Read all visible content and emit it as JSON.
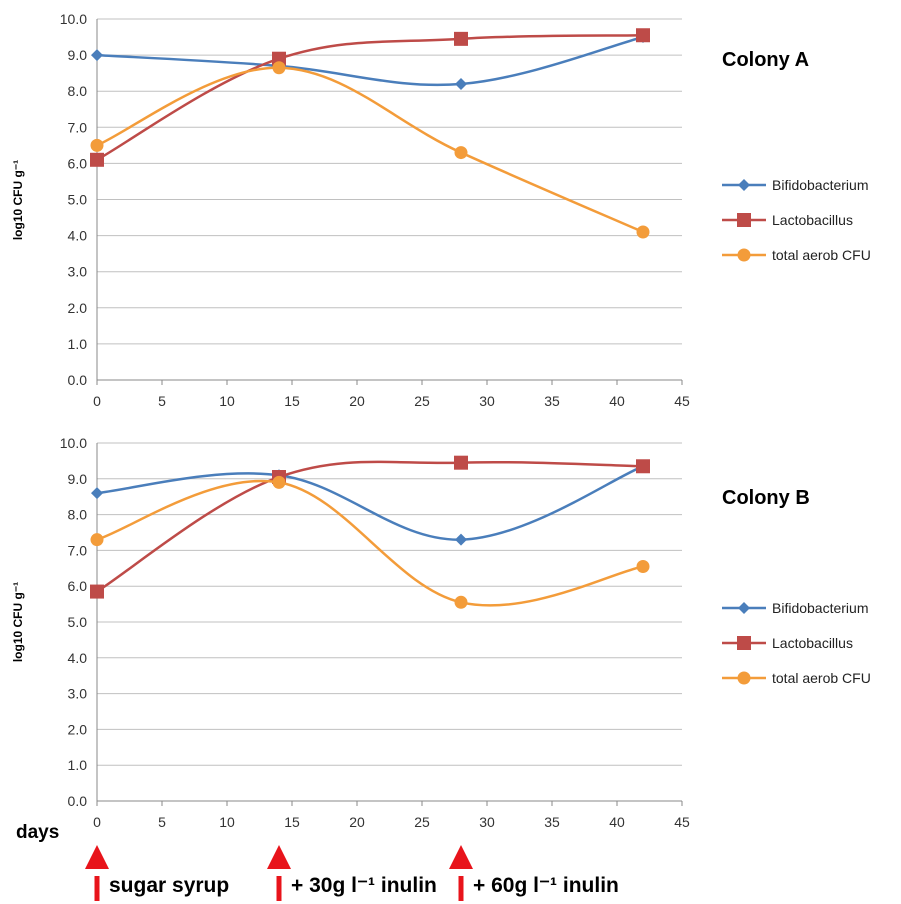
{
  "days_label": "days",
  "annotations": [
    {
      "label": "sugar syrup",
      "x": 0
    },
    {
      "label": "+ 30g l⁻¹ inulin",
      "x": 14
    },
    {
      "label": "+ 60g l⁻¹ inulin",
      "x": 28
    }
  ],
  "colors": {
    "bifidobacterium": "#4A7EBB",
    "lactobacillus": "#BE4B48",
    "total_aerob": "#F39C3A",
    "arrow": "#E8141B",
    "grid": "#C0C0C0"
  },
  "chart_data": [
    {
      "type": "line",
      "title": "Colony A",
      "ylabel": "log10 CFU g⁻¹",
      "xlabel": "",
      "xlim": [
        0,
        45
      ],
      "ylim": [
        0,
        10
      ],
      "x_ticks": [
        "0",
        "5",
        "10",
        "15",
        "20",
        "25",
        "30",
        "35",
        "40",
        "45"
      ],
      "y_ticks": [
        "0.0",
        "1.0",
        "2.0",
        "3.0",
        "4.0",
        "5.0",
        "6.0",
        "7.0",
        "8.0",
        "9.0",
        "10.0"
      ],
      "grid": true,
      "legend_position": "right",
      "series": [
        {
          "name": "Bifidobacterium",
          "marker": "diamond",
          "x": [
            0,
            14,
            28,
            42
          ],
          "values": [
            9.0,
            8.7,
            8.2,
            9.5
          ]
        },
        {
          "name": "Lactobacillus",
          "marker": "square",
          "x": [
            0,
            14,
            28,
            42
          ],
          "values": [
            6.1,
            8.9,
            9.45,
            9.55
          ]
        },
        {
          "name": "total aerob CFU",
          "marker": "circle",
          "x": [
            0,
            14,
            28,
            42
          ],
          "values": [
            6.5,
            8.65,
            6.3,
            4.1
          ]
        }
      ]
    },
    {
      "type": "line",
      "title": "Colony B",
      "ylabel": "log10 CFU g⁻¹",
      "xlabel": "",
      "xlim": [
        0,
        45
      ],
      "ylim": [
        0,
        10
      ],
      "x_ticks": [
        "0",
        "5",
        "10",
        "15",
        "20",
        "25",
        "30",
        "35",
        "40",
        "45"
      ],
      "y_ticks": [
        "0.0",
        "1.0",
        "2.0",
        "3.0",
        "4.0",
        "5.0",
        "6.0",
        "7.0",
        "8.0",
        "9.0",
        "10.0"
      ],
      "grid": true,
      "legend_position": "right",
      "series": [
        {
          "name": "Bifidobacterium",
          "marker": "diamond",
          "x": [
            0,
            14,
            28,
            42
          ],
          "values": [
            8.6,
            9.1,
            7.3,
            9.35
          ]
        },
        {
          "name": "Lactobacillus",
          "marker": "square",
          "x": [
            0,
            14,
            28,
            42
          ],
          "values": [
            5.85,
            9.05,
            9.45,
            9.35
          ]
        },
        {
          "name": "total aerob CFU",
          "marker": "circle",
          "x": [
            0,
            14,
            28,
            42
          ],
          "values": [
            7.3,
            8.9,
            5.55,
            6.55
          ]
        }
      ]
    }
  ]
}
